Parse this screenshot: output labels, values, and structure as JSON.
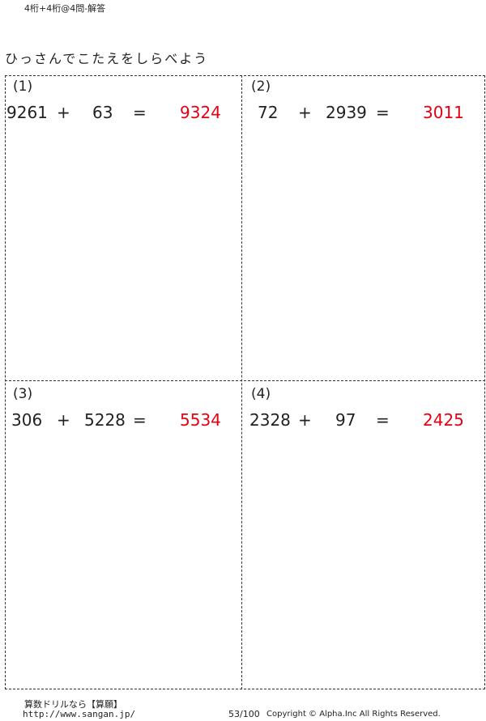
{
  "header": {
    "title": "4桁+4桁@4問-解答",
    "instruction": "ひっさんでこたえをしらべよう"
  },
  "problems": [
    {
      "label": "(1)",
      "a": "9261",
      "op": "+",
      "b": "63",
      "eq": "=",
      "answer": "9324"
    },
    {
      "label": "(2)",
      "a": "72",
      "op": "+",
      "b": "2939",
      "eq": "=",
      "answer": "3011"
    },
    {
      "label": "(3)",
      "a": "306",
      "op": "+",
      "b": "5228",
      "eq": "=",
      "answer": "5534"
    },
    {
      "label": "(4)",
      "a": "2328",
      "op": "+",
      "b": "97",
      "eq": "=",
      "answer": "2425"
    }
  ],
  "footer": {
    "brand": "算数ドリルなら【算願】",
    "url": "http://www.sangan.jp/",
    "page": "53/100",
    "copyright": "Copyright © Alpha.Inc All Rights Reserved."
  },
  "colors": {
    "answer": "#e60012"
  }
}
